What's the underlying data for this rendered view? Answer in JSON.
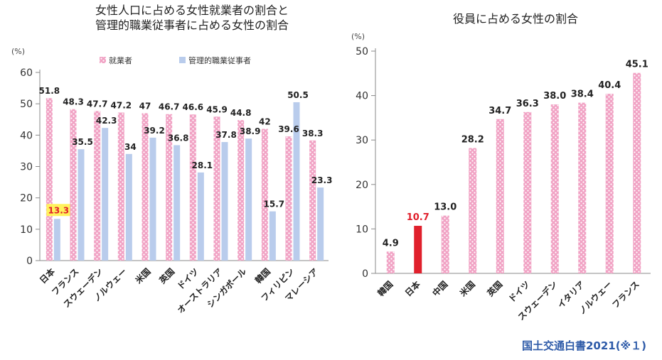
{
  "source_note": "国土交通白書2021(※１)",
  "colors": {
    "employed": "#f1a2c4",
    "managers": "#b9ccec",
    "japan_bar": "#e0202c",
    "highlight_label_bg": "#fff25c",
    "japan_label": "#e0202c",
    "source": "#2d5aa8"
  },
  "chart_data": [
    {
      "type": "bar",
      "title_line1": "女性人口に占める女性就業者の割合と",
      "title_line2": "管理的職業従事者に占める女性の割合",
      "ylabel": "(%)",
      "ylim": [
        0,
        60
      ],
      "yticks": [
        0,
        10,
        20,
        30,
        40,
        50,
        60
      ],
      "categories": [
        "日本",
        "フランス",
        "スウェーデン",
        "ノルウェー",
        "米国",
        "英国",
        "ドイツ",
        "オーストラリア",
        "シンガポール",
        "韓国",
        "フィリピン",
        "マレーシア"
      ],
      "series": [
        {
          "name": "就業者",
          "values": [
            51.8,
            48.3,
            47.7,
            47.2,
            47,
            46.7,
            46.6,
            45.9,
            44.8,
            42,
            39.6,
            38.3
          ],
          "labels": [
            "51.8",
            "48.3",
            "47.7",
            "47.2",
            "47",
            "46.7",
            "46.6",
            "45.9",
            "44.8",
            "42",
            "39.6",
            "38.3"
          ]
        },
        {
          "name": "管理的職業従事者",
          "values": [
            13.3,
            35.5,
            42.3,
            34,
            39.2,
            36.8,
            28.1,
            37.8,
            38.9,
            15.7,
            50.5,
            23.3
          ],
          "labels": [
            "13.3",
            "35.5",
            "42.3",
            "34",
            "39.2",
            "36.8",
            "28.1",
            "37.8",
            "38.9",
            "15.7",
            "50.5",
            "23.3"
          ]
        }
      ],
      "legend": "top"
    },
    {
      "type": "bar",
      "title": "役員に占める女性の割合",
      "ylabel": "(%)",
      "ylim": [
        0,
        50
      ],
      "yticks": [
        0,
        10,
        20,
        30,
        40,
        50
      ],
      "categories": [
        "韓国",
        "日本",
        "中国",
        "米国",
        "英国",
        "ドイツ",
        "スウェーデン",
        "イタリア",
        "ノルウェー",
        "フランス"
      ],
      "values": [
        4.9,
        10.7,
        13.0,
        28.2,
        34.7,
        36.3,
        38.0,
        38.4,
        40.4,
        45.1
      ],
      "labels": [
        "4.9",
        "10.7",
        "13.0",
        "28.2",
        "34.7",
        "36.3",
        "38.0",
        "38.4",
        "40.4",
        "45.1"
      ],
      "highlight": "日本"
    }
  ]
}
